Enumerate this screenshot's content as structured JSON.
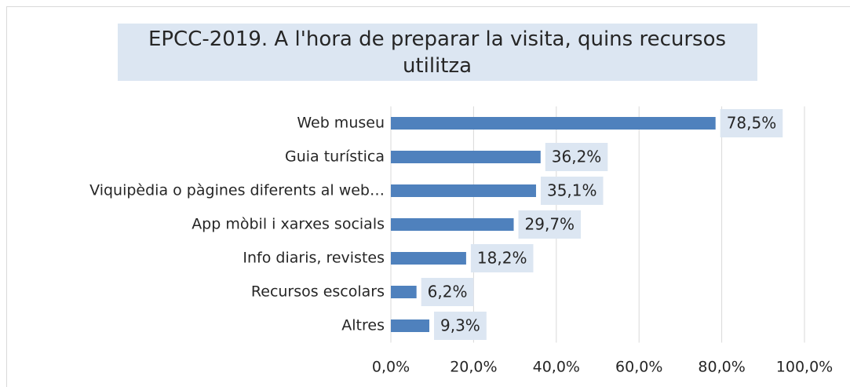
{
  "chart_data": {
    "type": "bar",
    "orientation": "horizontal",
    "title": "EPCC-2019. A l'hora de preparar la visita, quins recursos utilitza",
    "categories": [
      "Web museu",
      "Guia turística",
      "Viquipèdia o pàgines diferents al web…",
      "App mòbil i xarxes socials",
      "Info diaris, revistes",
      "Recursos escolars",
      "Altres"
    ],
    "values": [
      78.5,
      36.2,
      35.1,
      29.7,
      18.2,
      6.2,
      9.3
    ],
    "value_labels": [
      "78,5%",
      "36,2%",
      "35,1%",
      "29,7%",
      "18,2%",
      "6,2%",
      "9,3%"
    ],
    "color": "#4f81bd",
    "xlim": [
      0,
      100
    ],
    "xticks": [
      {
        "value": 0,
        "label": "0,0%"
      },
      {
        "value": 20,
        "label": "20,0%"
      },
      {
        "value": 40,
        "label": "40,0%"
      },
      {
        "value": 60,
        "label": "60,0%"
      },
      {
        "value": 80,
        "label": "80,0%"
      },
      {
        "value": 100,
        "label": "100,0%"
      }
    ],
    "grid": true
  }
}
